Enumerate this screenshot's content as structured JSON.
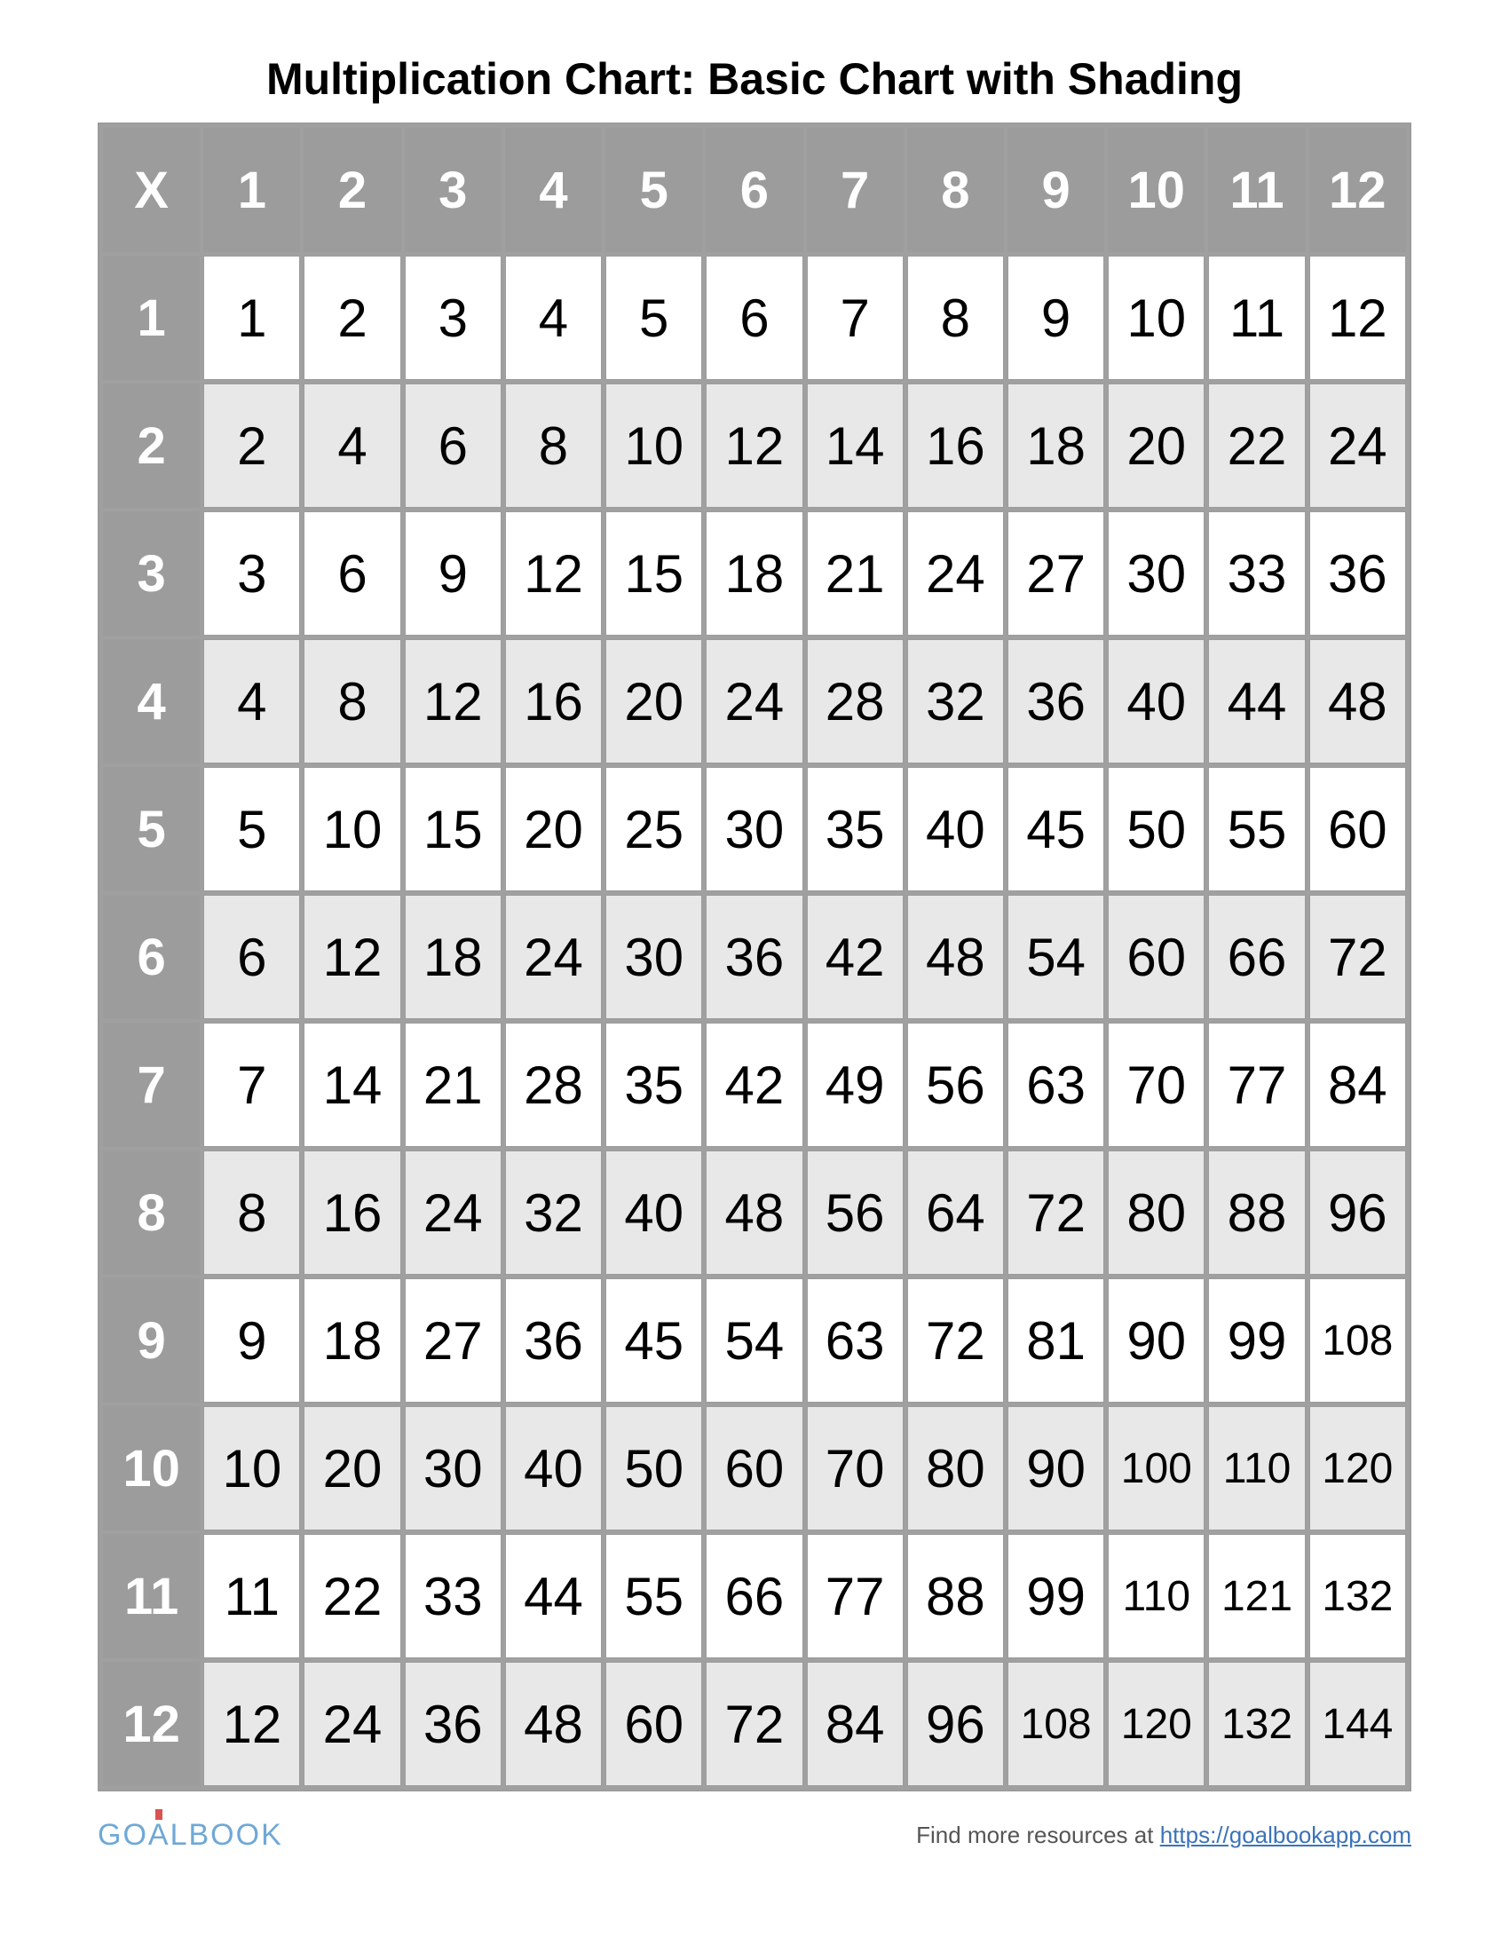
{
  "title": "Multiplication Chart: Basic Chart with Shading",
  "table": {
    "type": "table",
    "corner_label": "X",
    "col_headers": [
      "1",
      "2",
      "3",
      "4",
      "5",
      "6",
      "7",
      "8",
      "9",
      "10",
      "11",
      "12"
    ],
    "row_headers": [
      "1",
      "2",
      "3",
      "4",
      "5",
      "6",
      "7",
      "8",
      "9",
      "10",
      "11",
      "12"
    ],
    "rows": [
      [
        "1",
        "2",
        "3",
        "4",
        "5",
        "6",
        "7",
        "8",
        "9",
        "10",
        "11",
        "12"
      ],
      [
        "2",
        "4",
        "6",
        "8",
        "10",
        "12",
        "14",
        "16",
        "18",
        "20",
        "22",
        "24"
      ],
      [
        "3",
        "6",
        "9",
        "12",
        "15",
        "18",
        "21",
        "24",
        "27",
        "30",
        "33",
        "36"
      ],
      [
        "4",
        "8",
        "12",
        "16",
        "20",
        "24",
        "28",
        "32",
        "36",
        "40",
        "44",
        "48"
      ],
      [
        "5",
        "10",
        "15",
        "20",
        "25",
        "30",
        "35",
        "40",
        "45",
        "50",
        "55",
        "60"
      ],
      [
        "6",
        "12",
        "18",
        "24",
        "30",
        "36",
        "42",
        "48",
        "54",
        "60",
        "66",
        "72"
      ],
      [
        "7",
        "14",
        "21",
        "28",
        "35",
        "42",
        "49",
        "56",
        "63",
        "70",
        "77",
        "84"
      ],
      [
        "8",
        "16",
        "24",
        "32",
        "40",
        "48",
        "56",
        "64",
        "72",
        "80",
        "88",
        "96"
      ],
      [
        "9",
        "18",
        "27",
        "36",
        "45",
        "54",
        "63",
        "72",
        "81",
        "90",
        "99",
        "108"
      ],
      [
        "10",
        "20",
        "30",
        "40",
        "50",
        "60",
        "70",
        "80",
        "90",
        "100",
        "110",
        "120"
      ],
      [
        "11",
        "22",
        "33",
        "44",
        "55",
        "66",
        "77",
        "88",
        "99",
        "110",
        "121",
        "132"
      ],
      [
        "12",
        "24",
        "36",
        "48",
        "60",
        "72",
        "84",
        "96",
        "108",
        "120",
        "132",
        "144"
      ]
    ],
    "header_bg": "#9c9c9c",
    "header_text_color": "#ffffff",
    "odd_row_bg": "#ffffff",
    "even_row_bg": "#e8e8e8",
    "cell_text_color": "#000000",
    "border_color": "#9c9c9c",
    "cell_fontsize": 60,
    "small_cell_fontsize": 48,
    "small_threshold": 100,
    "header_fontsize": 58,
    "title_fontsize": 50
  },
  "footer": {
    "logo_text_left": "GO",
    "logo_text_mid": "A",
    "logo_text_right": "LBOOK",
    "resources_text": "Find more resources at ",
    "resources_link_text": "https://goalbookapp.com",
    "logo_color": "#6fa8d6",
    "link_color": "#3b73b9"
  }
}
